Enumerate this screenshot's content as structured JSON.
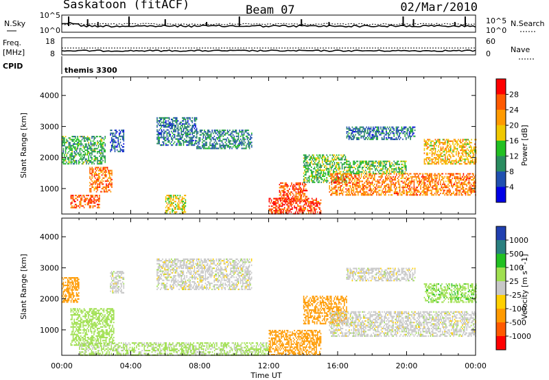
{
  "header": {
    "station": "Saskatoon (fitACF)",
    "beam": "Beam 07",
    "date": "02/Mar/2010"
  },
  "noise_panel": {
    "left_label": "N.Sky",
    "right_label": "N.Search",
    "left_ticks": [
      "10^5",
      "10^0"
    ],
    "right_ticks": [
      "10^5",
      "10^0"
    ]
  },
  "freq_panel": {
    "left_label_1": "Freq.",
    "left_label_2": "[MHz]",
    "right_label": "Nave",
    "left_ticks": [
      "18",
      "8"
    ],
    "right_ticks": [
      "60",
      "0"
    ]
  },
  "cpid_panel": {
    "label": "CPID",
    "program": "themis 3300"
  },
  "power_colorbar": {
    "label": "Power [dB]",
    "ticks": [
      "28",
      "24",
      "20",
      "16",
      "12",
      "8",
      "4"
    ],
    "colors": [
      "#ff0000",
      "#ff5a00",
      "#ff9a00",
      "#f0c800",
      "#22c022",
      "#2a8c60",
      "#2050b0",
      "#0000e6"
    ]
  },
  "velocity_colorbar": {
    "label": "Velocity [m s^-1]",
    "ticks": [
      "1000",
      "500",
      "100",
      "25",
      "-25",
      "-100",
      "-500",
      "-1000"
    ],
    "colors": [
      "#2040b0",
      "#2a8080",
      "#22c022",
      "#a0e050",
      "#c8c8c8",
      "#ffd000",
      "#ff9a00",
      "#ff5a00",
      "#ff0000"
    ]
  },
  "x_axis": {
    "label": "Time UT",
    "ticks": [
      "00:00",
      "04:00",
      "08:00",
      "12:00",
      "16:00",
      "20:00",
      "00:00"
    ]
  },
  "chart_data": [
    {
      "type": "heatmap",
      "name": "power",
      "ylabel": "Slant Range [km]",
      "yticks": [
        1000,
        2000,
        3000,
        4000
      ],
      "ylim": [
        180,
        4600
      ],
      "xlim": [
        0,
        24
      ],
      "colorbar_range": [
        0,
        32
      ],
      "regions": [
        {
          "t0": 0.0,
          "t1": 2.5,
          "r0": 1800,
          "r1": 2700,
          "level": 12
        },
        {
          "t0": 0.5,
          "t1": 2.2,
          "r0": 400,
          "r1": 800,
          "level": 26
        },
        {
          "t0": 1.6,
          "t1": 2.9,
          "r0": 900,
          "r1": 1700,
          "level": 24
        },
        {
          "t0": 2.8,
          "t1": 3.6,
          "r0": 2200,
          "r1": 2900,
          "level": 6
        },
        {
          "t0": 5.5,
          "t1": 7.8,
          "r0": 2400,
          "r1": 3300,
          "level": 8
        },
        {
          "t0": 7.8,
          "t1": 11.0,
          "r0": 2300,
          "r1": 2900,
          "level": 9
        },
        {
          "t0": 6.0,
          "t1": 7.2,
          "r0": 200,
          "r1": 800,
          "level": 18
        },
        {
          "t0": 12.0,
          "t1": 15.0,
          "r0": 200,
          "r1": 700,
          "level": 28
        },
        {
          "t0": 12.6,
          "t1": 14.2,
          "r0": 600,
          "r1": 1200,
          "level": 27
        },
        {
          "t0": 14.0,
          "t1": 16.5,
          "r0": 1200,
          "r1": 2100,
          "level": 14
        },
        {
          "t0": 15.5,
          "t1": 24.0,
          "r0": 800,
          "r1": 1500,
          "level": 24
        },
        {
          "t0": 16.5,
          "t1": 20.0,
          "r0": 1500,
          "r1": 1900,
          "level": 14
        },
        {
          "t0": 16.5,
          "t1": 20.5,
          "r0": 2600,
          "r1": 3000,
          "level": 8
        },
        {
          "t0": 21.0,
          "t1": 24.0,
          "r0": 1800,
          "r1": 2600,
          "level": 20
        }
      ]
    },
    {
      "type": "heatmap",
      "name": "velocity",
      "ylabel": "Slant Range [km]",
      "yticks": [
        1000,
        2000,
        3000,
        4000
      ],
      "ylim": [
        180,
        4600
      ],
      "xlim": [
        0,
        24
      ],
      "colorbar_range": [
        -1000,
        1000
      ],
      "regions": [
        {
          "t0": 0.0,
          "t1": 1.0,
          "r0": 1900,
          "r1": 2700,
          "level": -300
        },
        {
          "t0": 0.5,
          "t1": 3.0,
          "r0": 500,
          "r1": 1700,
          "level": 60
        },
        {
          "t0": 2.8,
          "t1": 3.6,
          "r0": 2200,
          "r1": 2900,
          "level": 0
        },
        {
          "t0": 5.5,
          "t1": 11.0,
          "r0": 2300,
          "r1": 3300,
          "level": 0
        },
        {
          "t0": 1.0,
          "t1": 12.0,
          "r0": 200,
          "r1": 600,
          "level": 40
        },
        {
          "t0": 12.0,
          "t1": 15.0,
          "r0": 200,
          "r1": 1000,
          "level": -150
        },
        {
          "t0": 14.0,
          "t1": 16.5,
          "r0": 1200,
          "r1": 2100,
          "level": -400
        },
        {
          "t0": 15.5,
          "t1": 24.0,
          "r0": 800,
          "r1": 1600,
          "level": 0
        },
        {
          "t0": 16.5,
          "t1": 20.5,
          "r0": 2600,
          "r1": 3000,
          "level": 0
        },
        {
          "t0": 21.0,
          "t1": 24.0,
          "r0": 1900,
          "r1": 2500,
          "level": 80
        }
      ]
    }
  ]
}
